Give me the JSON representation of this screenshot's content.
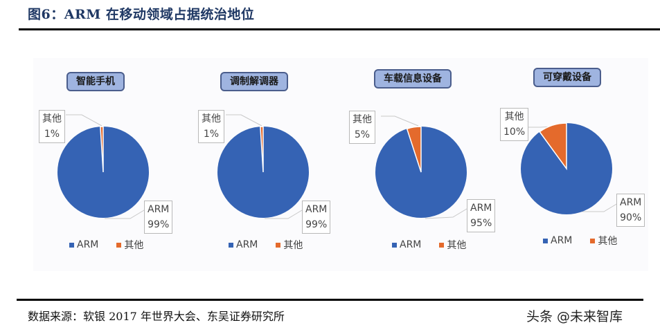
{
  "header": {
    "title": "图6：ARM 在移动领域占据统治地位"
  },
  "footer": {
    "source": "数据来源：软银 2017 年世界大会、东吴证券研究所",
    "watermark": "头条 @未来智库"
  },
  "colors": {
    "arm": "#3563b4",
    "other": "#e46a2c",
    "title_box": "#9fb4e0"
  },
  "legend": {
    "arm": "ARM",
    "other": "其他"
  },
  "charts": [
    {
      "title": "智能手机",
      "other_label": "其他",
      "other_pct": "1%",
      "arm_label": "ARM",
      "arm_pct": "99%"
    },
    {
      "title": "调制解调器",
      "other_label": "其他",
      "other_pct": "1%",
      "arm_label": "ARM",
      "arm_pct": "99%"
    },
    {
      "title": "车载信息设备",
      "other_label": "其他",
      "other_pct": "5%",
      "arm_label": "ARM",
      "arm_pct": "95%"
    },
    {
      "title": "可穿戴设备",
      "other_label": "其他",
      "other_pct": "10%",
      "arm_label": "ARM",
      "arm_pct": "90%"
    }
  ],
  "chart_data": [
    {
      "type": "pie",
      "title": "智能手机",
      "categories": [
        "ARM",
        "其他"
      ],
      "values": [
        99,
        1
      ],
      "legend_position": "bottom"
    },
    {
      "type": "pie",
      "title": "调制解调器",
      "categories": [
        "ARM",
        "其他"
      ],
      "values": [
        99,
        1
      ],
      "legend_position": "bottom"
    },
    {
      "type": "pie",
      "title": "车载信息设备",
      "categories": [
        "ARM",
        "其他"
      ],
      "values": [
        95,
        5
      ],
      "legend_position": "bottom"
    },
    {
      "type": "pie",
      "title": "可穿戴设备",
      "categories": [
        "ARM",
        "其他"
      ],
      "values": [
        90,
        10
      ],
      "legend_position": "bottom"
    }
  ]
}
